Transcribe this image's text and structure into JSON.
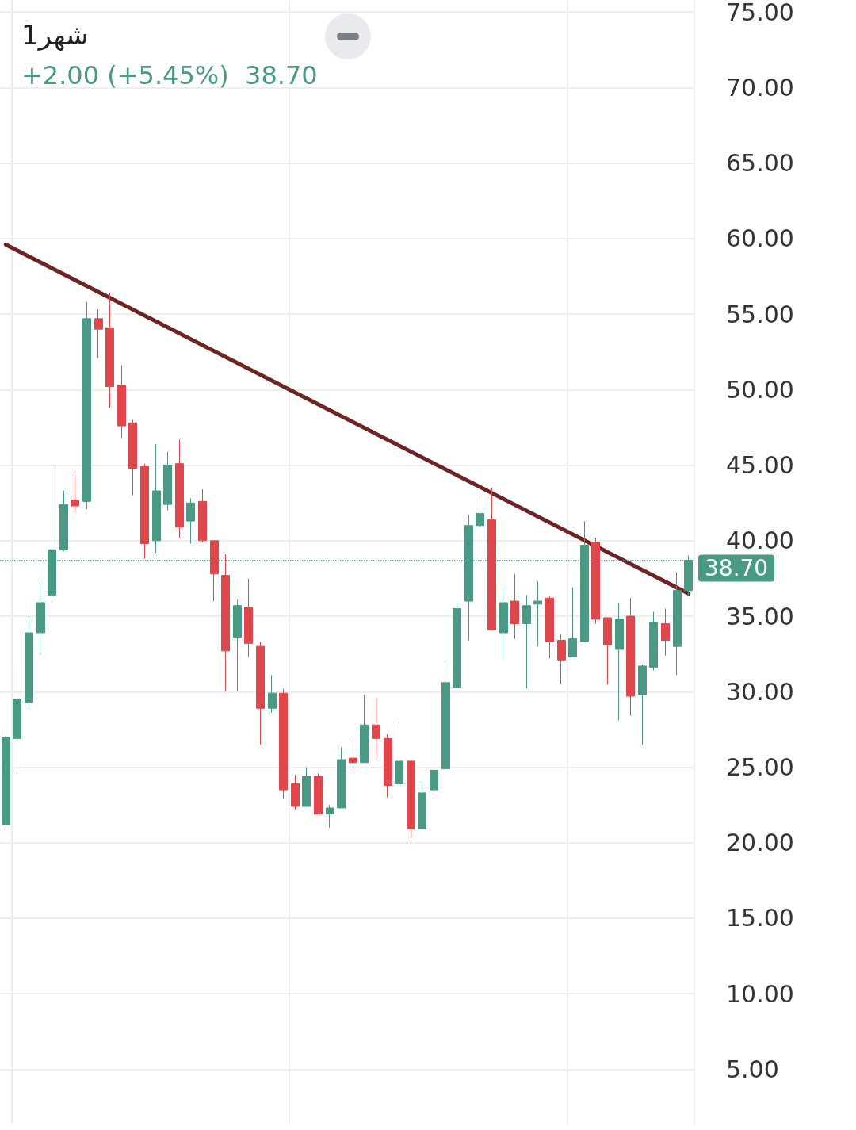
{
  "chart_data": {
    "type": "candlestick",
    "title": "1شهر",
    "subtitle": "+2.00 (+5.45%)  38.70",
    "categories": [
      null,
      null,
      null,
      null,
      null,
      null,
      null,
      null,
      null,
      null,
      null,
      null,
      null,
      null,
      null,
      null,
      null,
      null,
      null,
      null,
      null,
      null,
      null,
      null,
      null,
      null,
      null,
      null,
      null,
      null,
      null,
      null,
      null,
      null,
      null,
      null,
      null,
      null,
      null,
      null,
      null,
      null,
      null,
      null,
      null,
      null,
      null,
      null,
      null,
      null,
      null,
      null,
      null,
      null,
      null,
      null,
      null,
      null,
      null,
      null
    ],
    "series": [
      {
        "colors": [
          "#4a9985",
          "#4a9985",
          "#4a9985",
          "#4a9985",
          "#4a9985",
          "#4a9985",
          "#e0474c",
          "#4a9985",
          "#e0474c",
          "#e0474c",
          "#e0474c",
          "#e0474c",
          "#e0474c",
          "#4a9985",
          "#4a9985",
          "#e0474c",
          "#4a9985",
          "#e0474c",
          "#e0474c",
          "#e0474c",
          "#4a9985",
          "#e0474c",
          "#e0474c",
          "#4a9985",
          "#e0474c",
          "#e0474c",
          "#4a9985",
          "#e0474c",
          "#4a9985",
          "#4a9985",
          "#e0474c",
          "#4a9985",
          "#e0474c",
          "#e0474c",
          "#4a9985",
          "#e0474c",
          "#4a9985",
          "#4a9985",
          "#4a9985",
          "#4a9985",
          "#4a9985",
          "#4a9985",
          "#e0474c",
          "#4a9985",
          "#e0474c",
          "#4a9985",
          "#4a9985",
          "#e0474c",
          "#e0474c",
          "#4a9985",
          "#4a9985",
          "#e0474c",
          "#e0474c",
          "#4a9985",
          "#e0474c",
          "#4a9985",
          "#4a9985",
          "#e0474c",
          "#4a9985",
          "#4a9985"
        ],
        "ohlc": [
          [
            21.2,
            27.5,
            21.0,
            27.0
          ],
          [
            26.9,
            31.7,
            24.7,
            29.5
          ],
          [
            29.3,
            35.0,
            28.8,
            33.9
          ],
          [
            33.9,
            37.3,
            32.5,
            35.9
          ],
          [
            36.4,
            44.8,
            36.0,
            39.4
          ],
          [
            39.4,
            43.3,
            39.3,
            42.4
          ],
          [
            42.7,
            44.4,
            41.8,
            42.3
          ],
          [
            42.6,
            55.8,
            42.1,
            54.7
          ],
          [
            54.7,
            55.3,
            52.1,
            54.0
          ],
          [
            54.1,
            56.4,
            48.8,
            50.2
          ],
          [
            50.3,
            51.6,
            46.8,
            47.6
          ],
          [
            47.8,
            48.0,
            43.0,
            44.8
          ],
          [
            44.9,
            45.1,
            38.8,
            39.8
          ],
          [
            40.0,
            46.4,
            39.2,
            43.3
          ],
          [
            42.4,
            45.9,
            42.0,
            45.0
          ],
          [
            45.1,
            46.7,
            40.2,
            40.9
          ],
          [
            41.3,
            42.8,
            39.8,
            42.5
          ],
          [
            42.6,
            43.4,
            39.9,
            40.0
          ],
          [
            40.0,
            40.0,
            36.0,
            37.8
          ],
          [
            37.7,
            39.1,
            30.0,
            32.7
          ],
          [
            33.6,
            36.1,
            30.0,
            35.7
          ],
          [
            35.6,
            37.5,
            32.3,
            33.2
          ],
          [
            33.0,
            33.3,
            26.5,
            28.9
          ],
          [
            28.9,
            31.1,
            28.6,
            29.9
          ],
          [
            29.9,
            30.2,
            22.9,
            23.5
          ],
          [
            23.9,
            24.5,
            22.2,
            22.4
          ],
          [
            22.4,
            25.0,
            22.4,
            24.4
          ],
          [
            24.4,
            24.6,
            21.9,
            21.9
          ],
          [
            21.9,
            22.5,
            21.0,
            22.3
          ],
          [
            22.3,
            26.3,
            22.3,
            25.5
          ],
          [
            25.6,
            26.8,
            24.6,
            25.3
          ],
          [
            25.3,
            29.8,
            25.3,
            27.8
          ],
          [
            27.8,
            29.6,
            25.7,
            26.9
          ],
          [
            26.9,
            27.2,
            23.0,
            23.8
          ],
          [
            23.9,
            28.0,
            23.3,
            25.4
          ],
          [
            25.4,
            25.4,
            20.3,
            20.9
          ],
          [
            20.9,
            24.1,
            20.9,
            23.3
          ],
          [
            23.5,
            24.8,
            23.0,
            24.8
          ],
          [
            24.9,
            31.8,
            24.9,
            30.6
          ],
          [
            30.3,
            35.9,
            30.3,
            35.5
          ],
          [
            36.0,
            41.7,
            33.4,
            41.0
          ],
          [
            41.0,
            43.0,
            38.4,
            41.8
          ],
          [
            41.4,
            43.5,
            34.1,
            34.1
          ],
          [
            33.9,
            36.9,
            32.1,
            35.9
          ],
          [
            36.0,
            37.8,
            33.5,
            34.5
          ],
          [
            34.5,
            36.4,
            30.2,
            35.7
          ],
          [
            35.8,
            37.3,
            33.0,
            36.0
          ],
          [
            36.2,
            36.3,
            32.2,
            33.3
          ],
          [
            33.4,
            33.8,
            30.5,
            32.1
          ],
          [
            32.3,
            36.9,
            32.3,
            33.5
          ],
          [
            33.3,
            41.3,
            33.3,
            39.7
          ],
          [
            39.9,
            40.2,
            34.5,
            34.8
          ],
          [
            34.9,
            34.9,
            30.5,
            33.1
          ],
          [
            32.8,
            35.9,
            28.1,
            34.8
          ],
          [
            35.0,
            36.2,
            28.4,
            29.7
          ],
          [
            29.8,
            31.8,
            26.5,
            31.7
          ],
          [
            31.6,
            35.3,
            31.4,
            34.6
          ],
          [
            34.5,
            35.5,
            32.4,
            33.4
          ],
          [
            33.0,
            37.9,
            31.1,
            36.7
          ],
          [
            36.7,
            39.0,
            36.3,
            38.7
          ]
        ]
      },
      {
        "type": "line",
        "color": "#6e2424",
        "values": [
          59.6,
          null,
          null,
          null,
          null,
          null,
          null,
          null,
          null,
          null,
          null,
          null,
          null,
          null,
          null,
          null,
          null,
          null,
          null,
          null,
          null,
          null,
          null,
          null,
          null,
          null,
          null,
          null,
          null,
          null,
          null,
          null,
          null,
          null,
          null,
          null,
          null,
          null,
          null,
          null,
          null,
          null,
          null,
          null,
          null,
          null,
          null,
          null,
          null,
          null,
          null,
          null,
          null,
          null,
          null,
          null,
          null,
          null,
          null,
          36.5
        ]
      }
    ],
    "ylim": [
      1.4,
      75.8
    ],
    "yticks": [
      {
        "value": 5,
        "label": "5.00"
      },
      {
        "value": 10,
        "label": "10.00"
      },
      {
        "value": 15,
        "label": "15.00"
      },
      {
        "value": 20,
        "label": "20.00"
      },
      {
        "value": 25,
        "label": "25.00"
      },
      {
        "value": 30,
        "label": "30.00"
      },
      {
        "value": 35,
        "label": "35.00"
      },
      {
        "value": 40,
        "label": "40.00"
      },
      {
        "value": 45,
        "label": "45.00"
      },
      {
        "value": 50,
        "label": "50.00"
      },
      {
        "value": 55,
        "label": "55.00"
      },
      {
        "value": 60,
        "label": "60.00"
      },
      {
        "value": 65,
        "label": "65.00"
      },
      {
        "value": 70,
        "label": "70.00"
      },
      {
        "value": 75,
        "label": "75.00"
      }
    ],
    "ref_lines": [
      {
        "axis": "y",
        "value": 38.7,
        "label": "38.70",
        "color": "#4a9985",
        "line_style": "dotted"
      }
    ],
    "grid": true,
    "marker": "none",
    "line_style": "solid"
  }
}
